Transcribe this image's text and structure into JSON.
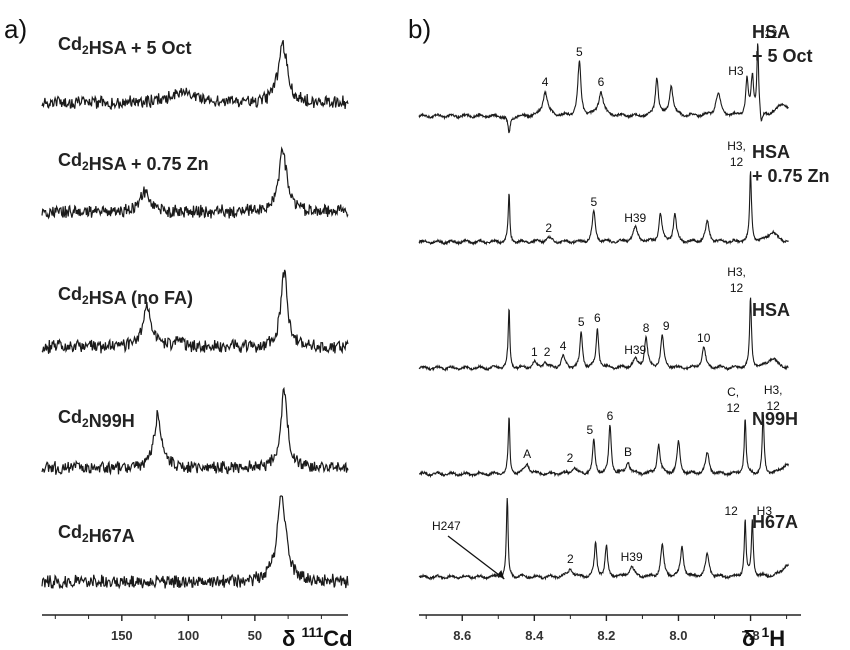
{
  "chart_data": [
    {
      "type": "line",
      "panel": "a)",
      "xlabel": "δ ¹¹¹Cd",
      "x_ticks": [
        150,
        100,
        50
      ],
      "xlim": [
        210,
        -20
      ],
      "series": [
        {
          "name": "Cd₂HSA + 5 Oct",
          "title_parts": [
            {
              "t": "Cd"
            },
            {
              "t": "2",
              "sub": true
            },
            {
              "t": "HSA + 5 Oct"
            }
          ],
          "peaks": [
            {
              "x": 103,
              "h": 10,
              "w": 12
            },
            {
              "x": 29,
              "h": 58,
              "w": 4
            }
          ]
        },
        {
          "name": "Cd₂HSA + 0.75 Zn",
          "title_parts": [
            {
              "t": "Cd"
            },
            {
              "t": "2",
              "sub": true
            },
            {
              "t": "HSA + 0.75 Zn"
            }
          ],
          "peaks": [
            {
              "x": 133,
              "h": 20,
              "w": 4
            },
            {
              "x": 29,
              "h": 62,
              "w": 3.5
            }
          ]
        },
        {
          "name": "Cd₂HSA (no FA)",
          "title_parts": [
            {
              "t": "Cd"
            },
            {
              "t": "2",
              "sub": true
            },
            {
              "t": "HSA (no FA)"
            }
          ],
          "peaks": [
            {
              "x": 131,
              "h": 42,
              "w": 3.5
            },
            {
              "x": 107,
              "h": 9,
              "w": 3
            },
            {
              "x": 28,
              "h": 76,
              "w": 3
            }
          ]
        },
        {
          "name": "Cd₂N99H",
          "title_parts": [
            {
              "t": "Cd"
            },
            {
              "t": "2",
              "sub": true
            },
            {
              "t": "N99H"
            }
          ],
          "peaks": [
            {
              "x": 123,
              "h": 52,
              "w": 3.5
            },
            {
              "x": 28,
              "h": 77,
              "w": 3
            }
          ]
        },
        {
          "name": "Cd₂H67A",
          "title_parts": [
            {
              "t": "Cd"
            },
            {
              "t": "2",
              "sub": true
            },
            {
              "t": "H67A"
            }
          ],
          "peaks": [
            {
              "x": 30,
              "h": 87,
              "w": 4
            }
          ]
        }
      ]
    },
    {
      "type": "line",
      "panel": "b)",
      "xlabel": "δ ¹H",
      "x_ticks": [
        8.6,
        8.4,
        8.2,
        8.0,
        7.8
      ],
      "xlim": [
        8.72,
        7.66
      ],
      "series": [
        {
          "name": "HSA + 5 Oct",
          "title_lines": [
            "HSA",
            "+ 5 Oct"
          ],
          "peaks": [
            {
              "x": 8.47,
              "h": -18,
              "w": 0.004
            },
            {
              "x": 8.37,
              "h": 24,
              "w": 0.008
            },
            {
              "x": 8.275,
              "h": 54,
              "w": 0.005
            },
            {
              "x": 8.215,
              "h": 24,
              "w": 0.008
            },
            {
              "x": 8.06,
              "h": 38,
              "w": 0.005
            },
            {
              "x": 8.02,
              "h": 30,
              "w": 0.006
            },
            {
              "x": 7.89,
              "h": 22,
              "w": 0.008
            },
            {
              "x": 7.81,
              "h": 35,
              "w": 0.004
            },
            {
              "x": 7.795,
              "h": 38,
              "w": 0.004
            },
            {
              "x": 7.78,
              "h": 72,
              "w": 0.003
            },
            {
              "x": 7.77,
              "h": -14,
              "w": 0.004
            },
            {
              "x": 7.71,
              "h": 12,
              "w": 0.02
            }
          ],
          "labels": [
            {
              "text": "4",
              "x": 8.37,
              "dx": 0,
              "dy": 0
            },
            {
              "text": "5",
              "x": 8.275,
              "dx": 0,
              "dy": 0
            },
            {
              "text": "6",
              "x": 8.215,
              "dx": 0,
              "dy": 0
            },
            {
              "text": "H3",
              "x": 7.81,
              "dx": -11,
              "dy": 0
            },
            {
              "text": "12",
              "x": 7.78,
              "dx": 13,
              "dy": 0
            }
          ]
        },
        {
          "name": "HSA + 0.75 Zn",
          "title_lines": [
            "HSA",
            "+ 0.75 Zn"
          ],
          "peaks": [
            {
              "x": 8.47,
              "h": 58,
              "w": 0.003
            },
            {
              "x": 8.468,
              "h": -12,
              "w": 0.004
            },
            {
              "x": 8.36,
              "h": 4,
              "w": 0.01
            },
            {
              "x": 8.235,
              "h": 30,
              "w": 0.005
            },
            {
              "x": 8.12,
              "h": 14,
              "w": 0.008
            },
            {
              "x": 8.05,
              "h": 28,
              "w": 0.005
            },
            {
              "x": 8.01,
              "h": 28,
              "w": 0.005
            },
            {
              "x": 7.92,
              "h": 20,
              "w": 0.006
            },
            {
              "x": 7.8,
              "h": 70,
              "w": 0.003
            },
            {
              "x": 7.74,
              "h": 10,
              "w": 0.015
            }
          ],
          "labels": [
            {
              "text": "2",
              "x": 8.36,
              "dx": 0,
              "dy": 0
            },
            {
              "text": "5",
              "x": 8.235,
              "dx": 0,
              "dy": 0
            },
            {
              "text": "H39",
              "x": 8.12,
              "dx": 0,
              "dy": 0
            },
            {
              "text": "H3,",
              "x": 7.8,
              "dx": -14,
              "dy": -16
            },
            {
              "text": "12",
              "x": 7.8,
              "dx": -14,
              "dy": 0
            }
          ]
        },
        {
          "name": "HSA",
          "title_lines": [
            "HSA"
          ],
          "peaks": [
            {
              "x": 8.47,
              "h": 68,
              "w": 0.003
            },
            {
              "x": 8.468,
              "h": -12,
              "w": 0.004
            },
            {
              "x": 8.4,
              "h": 6,
              "w": 0.006
            },
            {
              "x": 8.37,
              "h": 6,
              "w": 0.006
            },
            {
              "x": 8.32,
              "h": 12,
              "w": 0.006
            },
            {
              "x": 8.27,
              "h": 36,
              "w": 0.004
            },
            {
              "x": 8.225,
              "h": 40,
              "w": 0.004
            },
            {
              "x": 8.12,
              "h": 8,
              "w": 0.008
            },
            {
              "x": 8.09,
              "h": 30,
              "w": 0.005
            },
            {
              "x": 8.045,
              "h": 32,
              "w": 0.005
            },
            {
              "x": 7.93,
              "h": 20,
              "w": 0.006
            },
            {
              "x": 7.8,
              "h": 70,
              "w": 0.003
            },
            {
              "x": 7.74,
              "h": 10,
              "w": 0.015
            }
          ],
          "labels": [
            {
              "text": "1",
              "x": 8.4,
              "dx": 0,
              "dy": 0
            },
            {
              "text": "2",
              "x": 8.37,
              "dx": 2,
              "dy": 0
            },
            {
              "text": "4",
              "x": 8.32,
              "dx": 0,
              "dy": 0
            },
            {
              "text": "5",
              "x": 8.27,
              "dx": 0,
              "dy": 0
            },
            {
              "text": "6",
              "x": 8.225,
              "dx": 0,
              "dy": 0
            },
            {
              "text": "H39",
              "x": 8.12,
              "dx": 0,
              "dy": 0
            },
            {
              "text": "8",
              "x": 8.09,
              "dx": 0,
              "dy": 0
            },
            {
              "text": "9",
              "x": 8.045,
              "dx": 4,
              "dy": 0
            },
            {
              "text": "10",
              "x": 7.93,
              "dx": 0,
              "dy": 0
            },
            {
              "text": "H3,",
              "x": 7.8,
              "dx": -14,
              "dy": -16
            },
            {
              "text": "12",
              "x": 7.8,
              "dx": -14,
              "dy": 0
            }
          ]
        },
        {
          "name": "N99H",
          "title_lines": [
            "N99H"
          ],
          "peaks": [
            {
              "x": 8.47,
              "h": 66,
              "w": 0.003
            },
            {
              "x": 8.468,
              "h": -12,
              "w": 0.004
            },
            {
              "x": 8.42,
              "h": 10,
              "w": 0.008
            },
            {
              "x": 8.29,
              "h": 6,
              "w": 0.008
            },
            {
              "x": 8.235,
              "h": 34,
              "w": 0.004
            },
            {
              "x": 8.19,
              "h": 48,
              "w": 0.004
            },
            {
              "x": 8.14,
              "h": 12,
              "w": 0.006
            },
            {
              "x": 8.055,
              "h": 30,
              "w": 0.005
            },
            {
              "x": 8.0,
              "h": 32,
              "w": 0.005
            },
            {
              "x": 7.92,
              "h": 20,
              "w": 0.006
            },
            {
              "x": 7.815,
              "h": 56,
              "w": 0.003
            },
            {
              "x": 7.765,
              "h": 58,
              "w": 0.003
            },
            {
              "x": 7.7,
              "h": 10,
              "w": 0.015
            }
          ],
          "labels": [
            {
              "text": "A",
              "x": 8.42,
              "dx": 0,
              "dy": 0
            },
            {
              "text": "2",
              "x": 8.29,
              "dx": -4,
              "dy": 0
            },
            {
              "text": "5",
              "x": 8.235,
              "dx": -4,
              "dy": 0
            },
            {
              "text": "6",
              "x": 8.19,
              "dx": 0,
              "dy": 0
            },
            {
              "text": "B",
              "x": 8.14,
              "dx": 0,
              "dy": 0
            },
            {
              "text": "C,",
              "x": 7.815,
              "dx": -12,
              "dy": -16
            },
            {
              "text": "12",
              "x": 7.815,
              "dx": -12,
              "dy": 0
            },
            {
              "text": "H3,",
              "x": 7.765,
              "dx": 10,
              "dy": -16
            },
            {
              "text": "12",
              "x": 7.765,
              "dx": 10,
              "dy": 0
            }
          ]
        },
        {
          "name": "H67A",
          "title_lines": [
            "H67A"
          ],
          "peaks": [
            {
              "x": 8.475,
              "h": 90,
              "w": 0.003
            },
            {
              "x": 8.473,
              "h": -14,
              "w": 0.004
            },
            {
              "x": 8.3,
              "h": 8,
              "w": 0.008
            },
            {
              "x": 8.23,
              "h": 34,
              "w": 0.004
            },
            {
              "x": 8.2,
              "h": 30,
              "w": 0.004
            },
            {
              "x": 8.13,
              "h": 10,
              "w": 0.008
            },
            {
              "x": 8.045,
              "h": 32,
              "w": 0.005
            },
            {
              "x": 7.99,
              "h": 30,
              "w": 0.005
            },
            {
              "x": 7.92,
              "h": 22,
              "w": 0.006
            },
            {
              "x": 7.815,
              "h": 56,
              "w": 0.003
            },
            {
              "x": 7.795,
              "h": 56,
              "w": 0.003
            },
            {
              "x": 7.7,
              "h": 12,
              "w": 0.015
            }
          ],
          "labels": [
            {
              "text": "2",
              "x": 8.3,
              "dx": 0,
              "dy": 0
            },
            {
              "text": "H39",
              "x": 8.13,
              "dx": 0,
              "dy": 0
            },
            {
              "text": "12",
              "x": 7.815,
              "dx": -14,
              "dy": 0
            },
            {
              "text": "H3",
              "x": 7.795,
              "dx": 12,
              "dy": 0
            }
          ],
          "annotation": {
            "text": "H247",
            "arrow_to_x": 8.475
          }
        }
      ]
    }
  ]
}
